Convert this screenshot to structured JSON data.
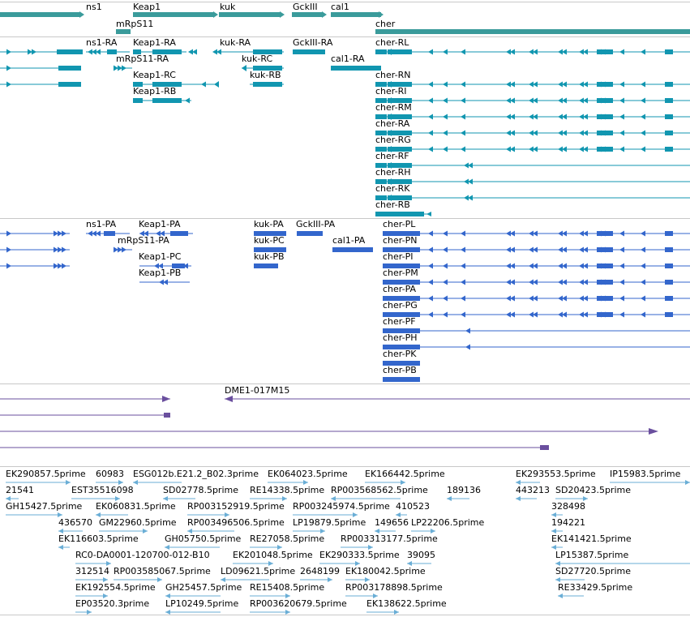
{
  "colors": {
    "gene": "#3a9b9b",
    "transcript": "#1196b0",
    "protein": "#3366cc",
    "clone": "#6a4f9e",
    "est": "#6aaed6",
    "separator": "#c8c8c8"
  },
  "tracks": {
    "genes": {
      "labels": [
        "ns1",
        "Keap1",
        "kuk",
        "GckIII",
        "cal1",
        "mRpS11",
        "cher"
      ]
    },
    "transcripts": {
      "labels": [
        "ns1-RA",
        "Keap1-RA",
        "kuk-RA",
        "GckIII-RA",
        "cher-RL",
        "mRpS11-RA",
        "kuk-RC",
        "cal1-RA",
        "Keap1-RC",
        "kuk-RB",
        "cher-RN",
        "Keap1-RB",
        "cher-RI",
        "cher-RM",
        "cher-RA",
        "cher-RG",
        "cher-RF",
        "cher-RH",
        "cher-RK",
        "cher-RB"
      ]
    },
    "proteins": {
      "labels": [
        "ns1-PA",
        "Keap1-PA",
        "kuk-PA",
        "GckIII-PA",
        "cher-PL",
        "mRpS11-PA",
        "kuk-PC",
        "cal1-PA",
        "cher-PN",
        "Keap1-PC",
        "kuk-PB",
        "cher-PI",
        "Keap1-PB",
        "cher-PM",
        "cher-PA",
        "cher-PG",
        "cher-PF",
        "cher-PH",
        "cher-PK",
        "cher-PB"
      ]
    },
    "clones": {
      "labels": [
        "DME1-017M15"
      ]
    },
    "ests": {
      "labels": [
        "EK290857.5prime",
        "60983",
        "ESG012b.E21.2_B02.3prime",
        "EK064023.5prime",
        "EK166442.5prime",
        "EK293553.5prime",
        "IP15983.5prime",
        "21541",
        "EST35516098",
        "SD02778.5prime",
        "RE14338.5prime",
        "RP003568562.5prime",
        "189136",
        "443213",
        "SD20423.5prime",
        "GH15427.5prime",
        "EK060831.5prime",
        "RP003152919.5prime",
        "RP003245974.5prime",
        "410523",
        "328498",
        "436570",
        "GM22960.5prime",
        "RP003496506.5prime",
        "LP19879.5prime",
        "149656",
        "LP22206.5prime",
        "194221",
        "EK116603.5prime",
        "GH05750.5prime",
        "RE27058.5prime",
        "RP003313177.5prime",
        "EK141421.5prime",
        "RC0-DA0001-120700-012-B10",
        "EK201048.5prime",
        "EK290333.5prime",
        "39095",
        "LP15387.5prime",
        "312514",
        "RP003585067.5prime",
        "LD09621.5prime",
        "2648199",
        "EK180042.5prime",
        "SD27720.5prime",
        "EK192554.5prime",
        "GH25457.5prime",
        "RE15408.5prime",
        "RP003178898.5prime",
        "RE33429.5prime",
        "EP03520.3prime",
        "LP10249.5prime",
        "RP003620679.5prime",
        "EK138622.5prime"
      ]
    }
  }
}
